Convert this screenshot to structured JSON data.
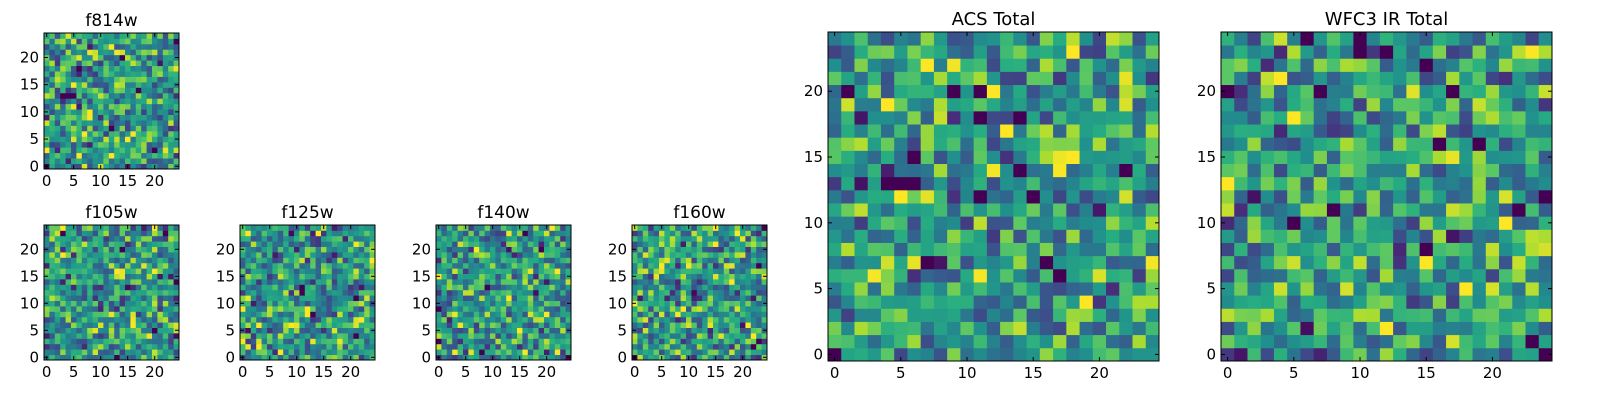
{
  "chart_data": [
    {
      "id": "f814w",
      "type": "heatmap",
      "title": "f814w",
      "xlim": [
        -0.5,
        24.5
      ],
      "ylim": [
        -0.5,
        24.5
      ],
      "xticks": [
        0,
        5,
        10,
        15,
        20
      ],
      "yticks": [
        0,
        5,
        10,
        15,
        20
      ],
      "grid_size": 25,
      "colormap": "viridis",
      "seed": 11,
      "darkest_pixels": [
        [
          0,
          0
        ],
        [
          3,
          13
        ],
        [
          4,
          13
        ],
        [
          5,
          13
        ],
        [
          12,
          7
        ],
        [
          17,
          14
        ],
        [
          14,
          20
        ],
        [
          6,
          18
        ],
        [
          20,
          3
        ]
      ]
    },
    {
      "id": "f105w",
      "type": "heatmap",
      "title": "f105w",
      "xlim": [
        -0.5,
        24.5
      ],
      "ylim": [
        -0.5,
        24.5
      ],
      "xticks": [
        0,
        5,
        10,
        15,
        20
      ],
      "yticks": [
        0,
        5,
        10,
        15,
        20
      ],
      "grid_size": 25,
      "colormap": "viridis",
      "seed": 23,
      "darkest_pixels": [
        [
          3,
          23
        ],
        [
          22,
          23
        ],
        [
          20,
          5
        ],
        [
          13,
          0
        ],
        [
          24,
          14
        ]
      ]
    },
    {
      "id": "f125w",
      "type": "heatmap",
      "title": "f125w",
      "xlim": [
        -0.5,
        24.5
      ],
      "ylim": [
        -0.5,
        24.5
      ],
      "xticks": [
        0,
        5,
        10,
        15,
        20
      ],
      "yticks": [
        0,
        5,
        10,
        15,
        20
      ],
      "grid_size": 25,
      "colormap": "viridis",
      "seed": 37,
      "darkest_pixels": [
        [
          11,
          12
        ],
        [
          11,
          13
        ],
        [
          21,
          4
        ],
        [
          21,
          11
        ],
        [
          13,
          8
        ]
      ]
    },
    {
      "id": "f140w",
      "type": "heatmap",
      "title": "f140w",
      "xlim": [
        -0.5,
        24.5
      ],
      "ylim": [
        -0.5,
        24.5
      ],
      "xticks": [
        0,
        5,
        10,
        15,
        20
      ],
      "yticks": [
        0,
        5,
        10,
        15,
        20
      ],
      "grid_size": 25,
      "colormap": "viridis",
      "seed": 53,
      "darkest_pixels": [
        [
          9,
          13
        ],
        [
          0,
          9
        ],
        [
          8,
          1
        ],
        [
          24,
          0
        ],
        [
          0,
          3
        ]
      ]
    },
    {
      "id": "f160w",
      "type": "heatmap",
      "title": "f160w",
      "xlim": [
        -0.5,
        24.5
      ],
      "ylim": [
        -0.5,
        24.5
      ],
      "xticks": [
        0,
        5,
        10,
        15,
        20
      ],
      "yticks": [
        0,
        5,
        10,
        15,
        20
      ],
      "grid_size": 25,
      "colormap": "viridis",
      "seed": 71,
      "darkest_pixels": [
        [
          23,
          17
        ],
        [
          23,
          3
        ],
        [
          22,
          2
        ],
        [
          0,
          0
        ]
      ]
    },
    {
      "id": "acs_total",
      "type": "heatmap",
      "title": "ACS Total",
      "xlim": [
        -0.5,
        24.5
      ],
      "ylim": [
        -0.5,
        24.5
      ],
      "xticks": [
        0,
        5,
        10,
        15,
        20
      ],
      "yticks": [
        0,
        5,
        10,
        15,
        20
      ],
      "grid_size": 25,
      "colormap": "viridis",
      "seed": 89,
      "darkest_pixels": [
        [
          0,
          0
        ],
        [
          1,
          20
        ],
        [
          5,
          13
        ],
        [
          6,
          13
        ],
        [
          4,
          13
        ],
        [
          6,
          15
        ],
        [
          7,
          7
        ],
        [
          9,
          20
        ],
        [
          11,
          20
        ],
        [
          14,
          18
        ],
        [
          17,
          6
        ],
        [
          22,
          14
        ],
        [
          15,
          12
        ],
        [
          11,
          12
        ],
        [
          16,
          7
        ],
        [
          14,
          14
        ]
      ]
    },
    {
      "id": "wfc3_ir_total",
      "type": "heatmap",
      "title": "WFC3 IR Total",
      "xlim": [
        -0.5,
        24.5
      ],
      "ylim": [
        -0.5,
        24.5
      ],
      "xticks": [
        0,
        5,
        10,
        15,
        20
      ],
      "yticks": [
        0,
        5,
        10,
        15,
        20
      ],
      "grid_size": 25,
      "colormap": "viridis",
      "seed": 97,
      "darkest_pixels": [
        [
          10,
          23
        ],
        [
          10,
          24
        ],
        [
          24,
          0
        ],
        [
          23,
          1
        ],
        [
          8,
          11
        ],
        [
          15,
          8
        ],
        [
          16,
          16
        ],
        [
          19,
          16
        ],
        [
          24,
          12
        ],
        [
          22,
          11
        ],
        [
          7,
          20
        ],
        [
          0,
          20
        ],
        [
          17,
          20
        ],
        [
          5,
          10
        ],
        [
          12,
          23
        ]
      ]
    }
  ]
}
